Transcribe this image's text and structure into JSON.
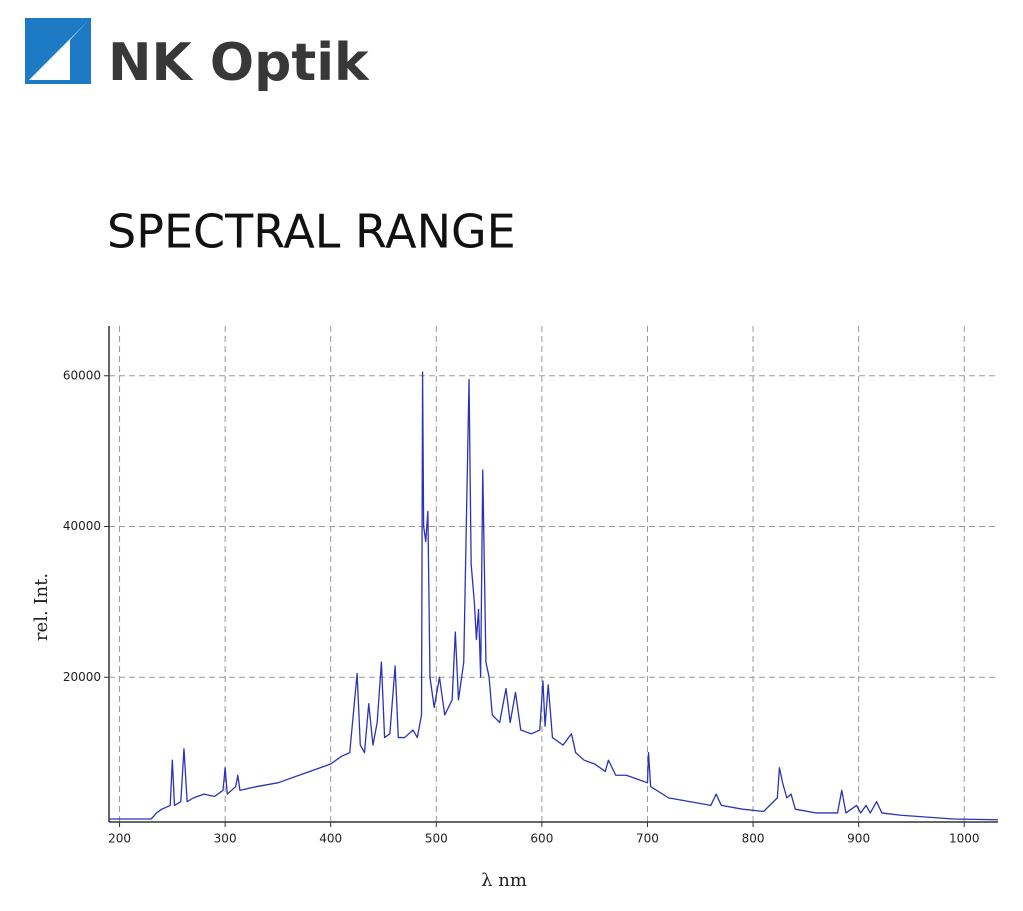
{
  "logo": {
    "text": "NK Optik"
  },
  "heading": "SPECTRAL RANGE",
  "chart_data": {
    "type": "line",
    "xlabel": "λ nm",
    "ylabel": "rel. Int.",
    "color": "#2b33b5",
    "x": [
      190,
      230,
      235,
      240,
      248,
      250,
      252,
      258,
      261,
      264,
      270,
      280,
      290,
      298,
      300,
      302,
      310,
      312,
      314,
      330,
      350,
      370,
      390,
      400,
      410,
      418,
      422,
      425,
      428,
      432,
      436,
      440,
      444,
      448,
      451,
      456,
      461,
      464,
      470,
      478,
      482,
      486,
      487,
      488,
      490,
      492,
      494,
      498,
      503,
      508,
      515,
      518,
      521,
      526,
      531,
      533,
      536,
      538,
      540,
      542,
      544,
      547,
      550,
      553,
      560,
      566,
      570,
      575,
      580,
      590,
      598,
      601,
      603,
      606,
      610,
      620,
      628,
      632,
      640,
      650,
      660,
      663,
      670,
      680,
      690,
      700,
      701,
      703,
      720,
      740,
      760,
      765,
      770,
      790,
      810,
      823,
      825,
      828,
      832,
      836,
      840,
      860,
      880,
      884,
      888,
      898,
      902,
      907,
      911,
      917,
      922,
      940,
      960,
      990,
      1032
    ],
    "values": [
      1200,
      1200,
      2000,
      2500,
      3000,
      9000,
      3000,
      3500,
      10500,
      3500,
      4000,
      4500,
      4200,
      5000,
      8000,
      4500,
      5500,
      7000,
      5000,
      5500,
      6000,
      7000,
      8000,
      8500,
      9500,
      10000,
      16000,
      20500,
      11000,
      10000,
      16500,
      11000,
      14000,
      22000,
      12000,
      12500,
      21500,
      12000,
      12000,
      13000,
      12000,
      15000,
      60500,
      40000,
      38000,
      42000,
      20000,
      16000,
      20000,
      15000,
      17000,
      26000,
      17000,
      22000,
      59500,
      35000,
      30000,
      25000,
      29000,
      20000,
      47500,
      22000,
      20000,
      15000,
      14000,
      18500,
      14000,
      18000,
      13000,
      12500,
      13000,
      19500,
      13500,
      19000,
      12000,
      11000,
      12500,
      10000,
      9000,
      8500,
      7500,
      9000,
      7000,
      7000,
      6500,
      6000,
      10000,
      5500,
      4000,
      3500,
      3000,
      4500,
      3000,
      2500,
      2200,
      4000,
      8000,
      6000,
      4000,
      4500,
      2500,
      2000,
      2000,
      5000,
      2000,
      3000,
      2000,
      3000,
      2000,
      3500,
      2000,
      1700,
      1500,
      1200,
      1100
    ],
    "xlim": [
      190,
      1032
    ],
    "ylim": [
      800,
      66600
    ],
    "xticks": [
      200,
      300,
      400,
      500,
      600,
      700,
      800,
      900,
      1000
    ],
    "yticks": [
      20000,
      40000,
      60000
    ],
    "grid": true
  }
}
